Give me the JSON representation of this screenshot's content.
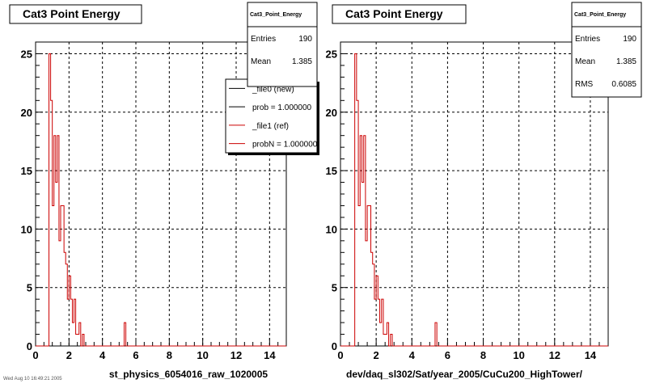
{
  "chart_data": [
    {
      "type": "histogram",
      "title": "Cat3 Point Energy",
      "xlabel": "st_physics_6054016_raw_1020005",
      "xlim": [
        0,
        15
      ],
      "ylim": [
        0,
        26
      ],
      "x_ticks": [
        "0",
        "2",
        "4",
        "6",
        "8",
        "10",
        "12",
        "14"
      ],
      "y_ticks": [
        "0",
        "5",
        "10",
        "15",
        "20",
        "25"
      ],
      "grid": true,
      "bin_width": 0.1,
      "series": [
        {
          "color": "#cc0000",
          "bins": [
            [
              0.8,
              25
            ],
            [
              0.9,
              21
            ],
            [
              1.0,
              12
            ],
            [
              1.1,
              18
            ],
            [
              1.2,
              14
            ],
            [
              1.3,
              18
            ],
            [
              1.4,
              9
            ],
            [
              1.5,
              12
            ],
            [
              1.6,
              12
            ],
            [
              1.7,
              8
            ],
            [
              1.8,
              7
            ],
            [
              1.9,
              4
            ],
            [
              2.0,
              6
            ],
            [
              2.1,
              4
            ],
            [
              2.2,
              2
            ],
            [
              2.3,
              4
            ],
            [
              2.4,
              1
            ],
            [
              2.5,
              1
            ],
            [
              2.6,
              2
            ],
            [
              2.8,
              1
            ],
            [
              5.3,
              2
            ]
          ]
        }
      ],
      "stats": {
        "title": "Cat3_Point_Energy",
        "rows": [
          {
            "label": "Entries",
            "value": "190"
          },
          {
            "label": "Mean",
            "value": "1.385"
          }
        ]
      },
      "legend": [
        {
          "label": "_file0 (new)",
          "color": "#000000"
        },
        {
          "label": "prob = 1.000000",
          "color": "#000000"
        },
        {
          "label": "_file1 (ref)",
          "color": "#cc0000"
        },
        {
          "label": "probN = 1.000000",
          "color": "#cc0000"
        }
      ]
    },
    {
      "type": "histogram",
      "title": "Cat3 Point Energy",
      "xlabel": "dev/daq_sl302/Sat/year_2005/CuCu200_HighTower/",
      "xlim": [
        0,
        15
      ],
      "ylim": [
        0,
        26
      ],
      "x_ticks": [
        "0",
        "2",
        "4",
        "6",
        "8",
        "10",
        "12",
        "14"
      ],
      "y_ticks": [
        "0",
        "5",
        "10",
        "15",
        "20",
        "25"
      ],
      "grid": true,
      "bin_width": 0.1,
      "series": [
        {
          "color": "#cc0000",
          "bins": [
            [
              0.8,
              25
            ],
            [
              0.9,
              21
            ],
            [
              1.0,
              12
            ],
            [
              1.1,
              18
            ],
            [
              1.2,
              14
            ],
            [
              1.3,
              18
            ],
            [
              1.4,
              9
            ],
            [
              1.5,
              12
            ],
            [
              1.6,
              12
            ],
            [
              1.7,
              8
            ],
            [
              1.8,
              7
            ],
            [
              1.9,
              4
            ],
            [
              2.0,
              6
            ],
            [
              2.1,
              4
            ],
            [
              2.2,
              2
            ],
            [
              2.3,
              4
            ],
            [
              2.4,
              1
            ],
            [
              2.5,
              1
            ],
            [
              2.6,
              2
            ],
            [
              2.8,
              1
            ],
            [
              5.3,
              2
            ]
          ]
        }
      ],
      "stats": {
        "title": "Cat3_Point_Energy",
        "rows": [
          {
            "label": "Entries",
            "value": "190"
          },
          {
            "label": "Mean",
            "value": "1.385"
          },
          {
            "label": "RMS",
            "value": "0.6085"
          }
        ]
      }
    }
  ],
  "footer_stamp": "Wed Aug 10 16:49:21 2005"
}
